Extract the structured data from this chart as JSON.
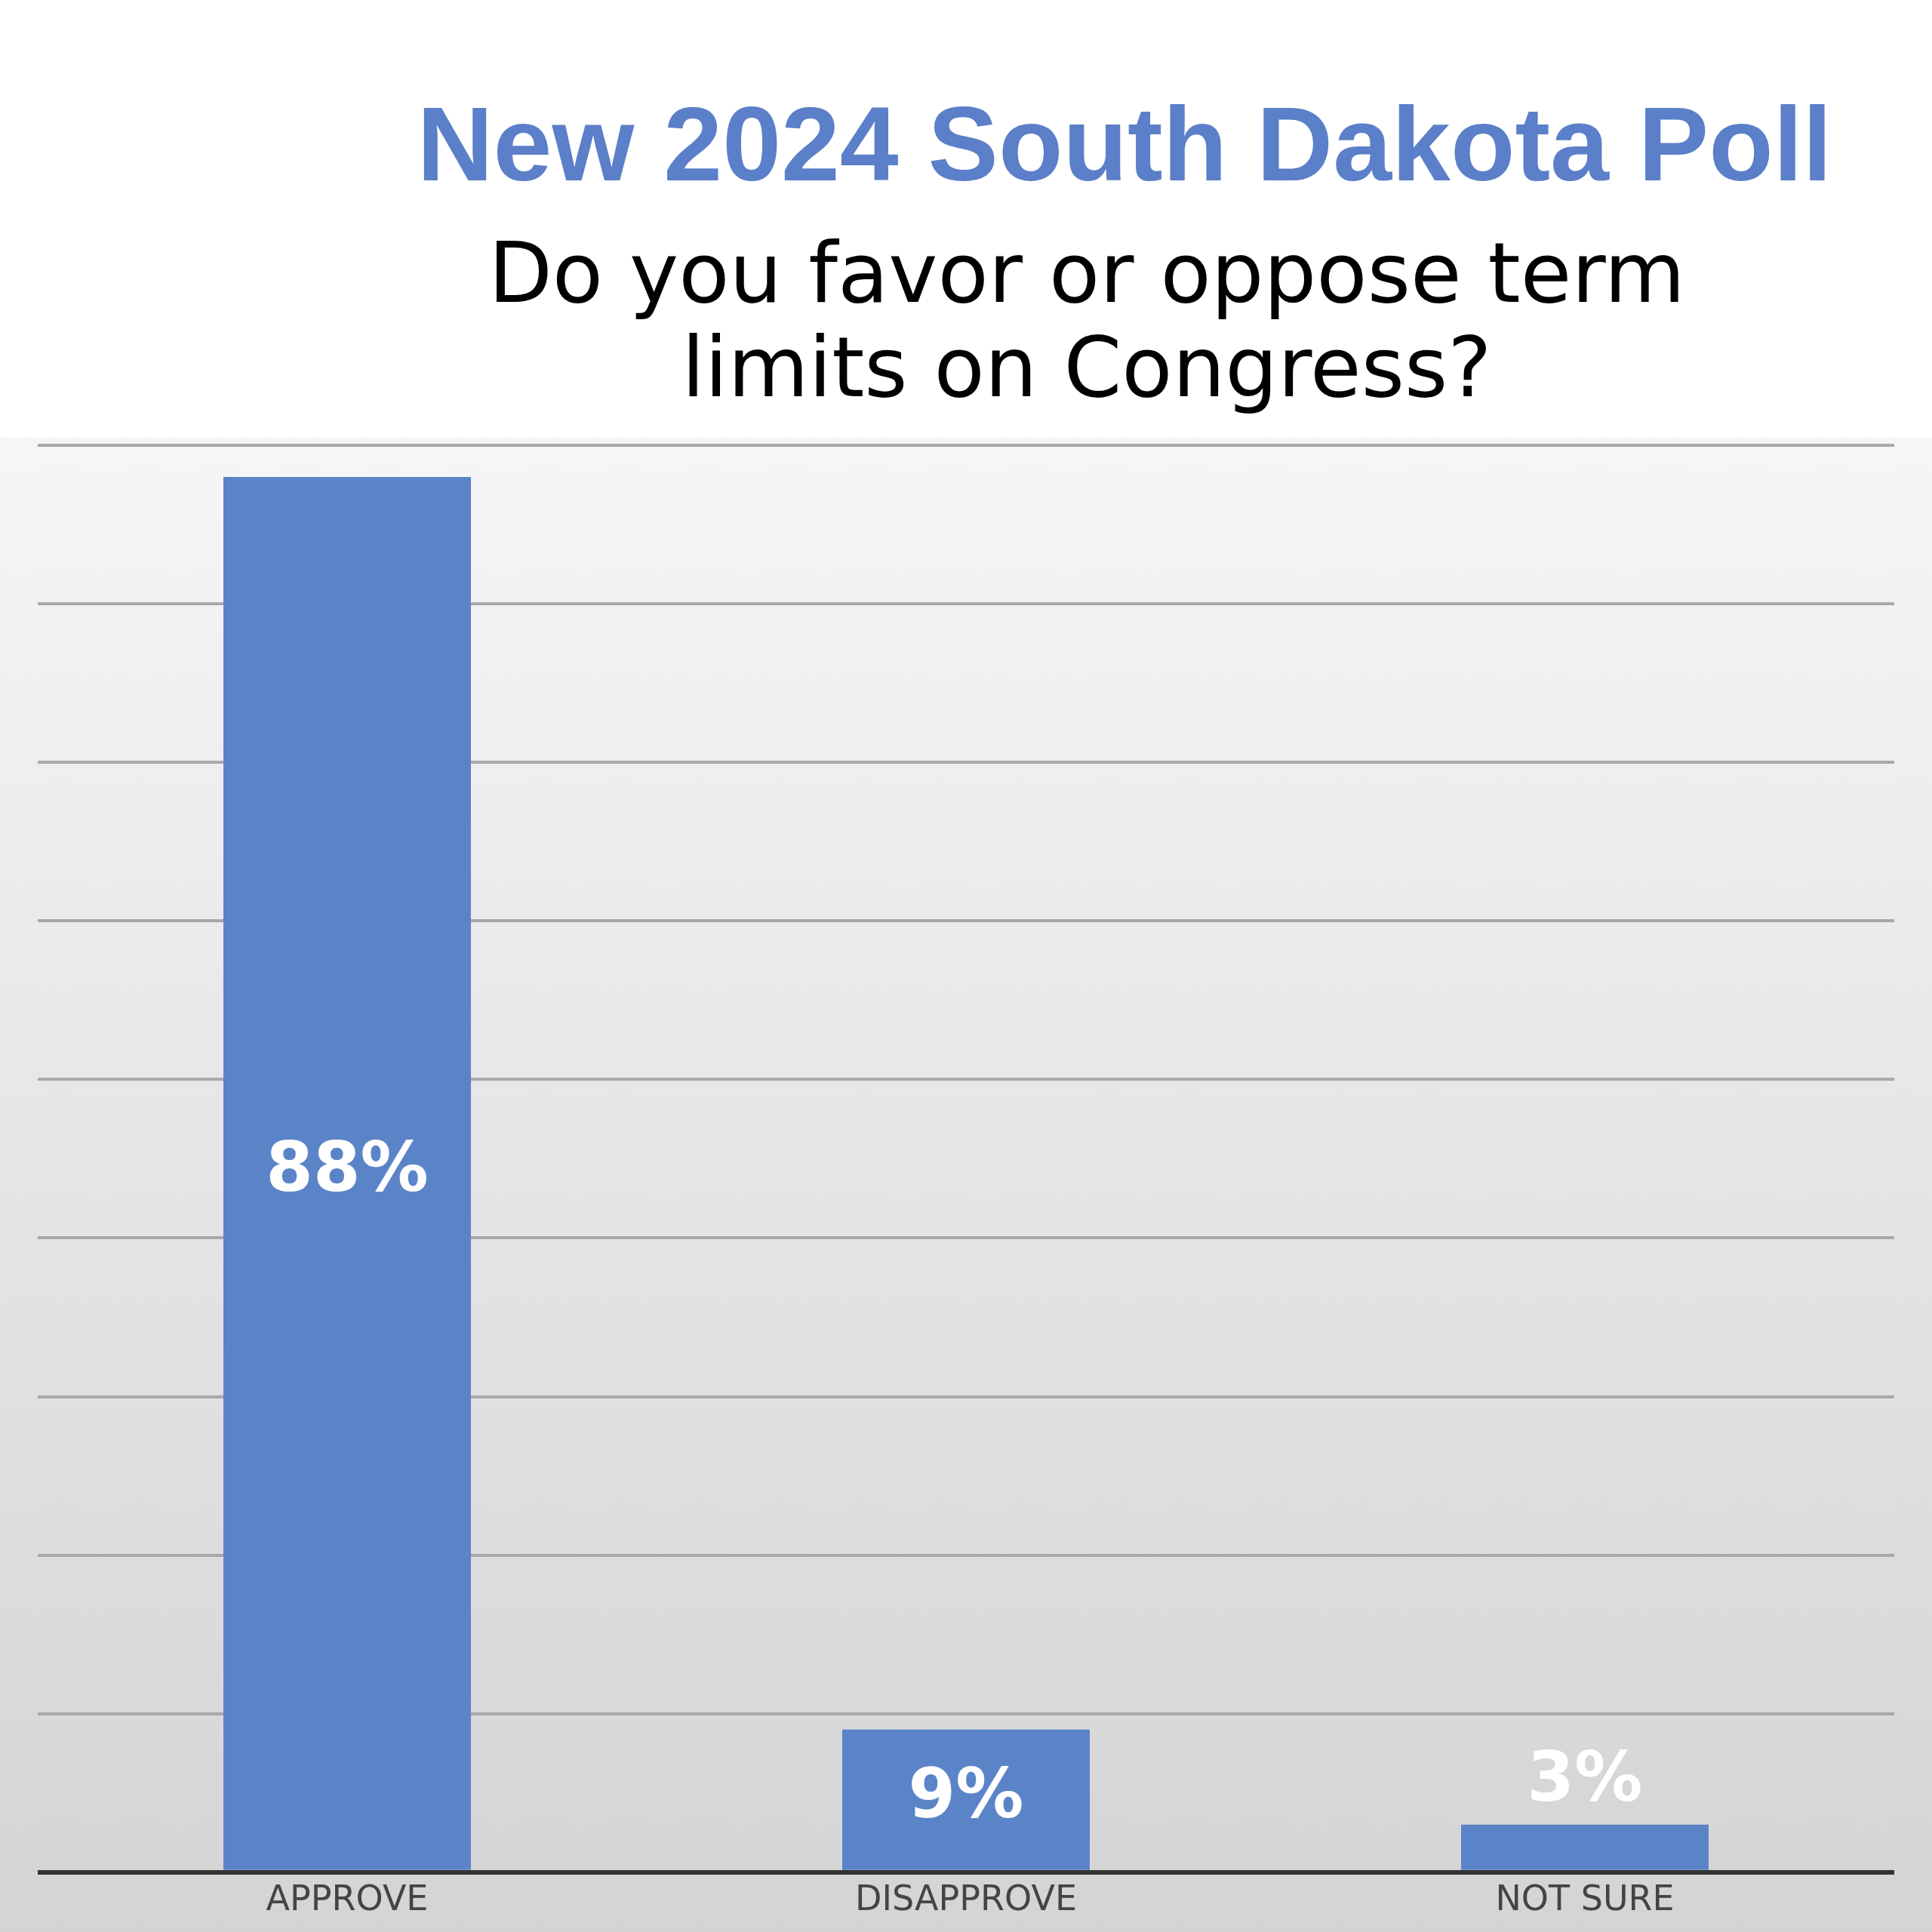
{
  "chart_data": {
    "type": "bar",
    "title": "New 2024 South Dakota Poll",
    "subtitle": "Do you favor or oppose term limits on Congress?",
    "categories": [
      "APPROVE",
      "DISAPPROVE",
      "NOT SURE"
    ],
    "values": [
      88,
      9,
      3
    ],
    "color": "#5b84c8",
    "value_labels": [
      "88%",
      "9%",
      "3%"
    ],
    "grid": "y",
    "tick_labels": "x",
    "legend": false
  }
}
